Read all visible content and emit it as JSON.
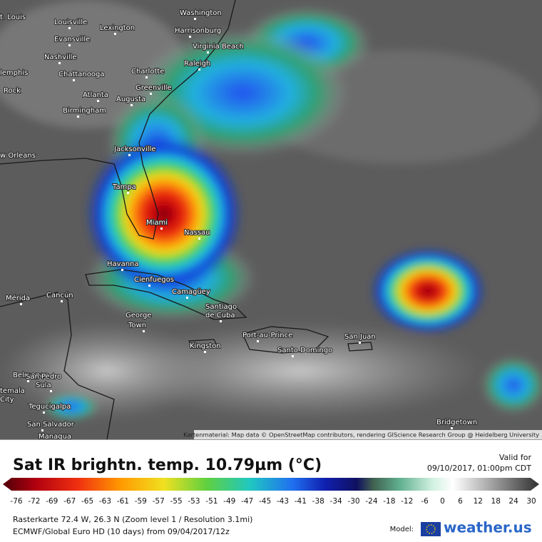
{
  "map": {
    "cities": [
      "Washington",
      "t. Louis",
      "Louisville",
      "Lexington",
      "Harrisonburg",
      "Evansville",
      "Virginia Beach",
      "Nashville",
      "lemphis",
      "Chattanooga",
      "Charlotte",
      "Raleigh",
      "Greenville",
      "Rock",
      "Atlanta",
      "Augusta",
      "Birmingham",
      "Jacksonville",
      "w Orleans",
      "Tampa",
      "Miami",
      "Nassau",
      "Havanna",
      "Cienfuegos",
      "Camagüey",
      "Mérida",
      "Cancún",
      "Santiago",
      "de Cuba",
      "George",
      "Town",
      "Port-au-Prince",
      "San Juan",
      "Santo Domingo",
      "Kingston",
      "Belmopan",
      "San Pedro",
      "Sula",
      "temala",
      "City",
      "Tegucigalpa",
      "San Salvador",
      "Managua",
      "Bridgetown"
    ],
    "attribution": "Kartenmaterial: Map data © OpenStreetMap contributors, rendering GIScience Research Group @ Heidelberg University"
  },
  "legend": {
    "title": "Sat IR brightn. temp. 10.79µm (°C)",
    "valid_label": "Valid for",
    "valid_time": "09/10/2017, 01:00pm CDT",
    "ticks": [
      -76,
      -72,
      -69,
      -67,
      -65,
      -63,
      -61,
      -59,
      -57,
      -55,
      -53,
      -51,
      -49,
      -47,
      -45,
      -43,
      -41,
      -38,
      -34,
      -30,
      -24,
      -18,
      -12,
      -6,
      0,
      6,
      12,
      18,
      24,
      30
    ]
  },
  "footer": {
    "raster": "Rasterkarte 72.4 W, 26.3 N (Zoom level 1 / Resolution 3.1mi)",
    "model_run": "ECMWF/Global Euro HD (10 days) from 09/04/2017/12z",
    "model_label": "Model:",
    "brand": "weather.us"
  }
}
